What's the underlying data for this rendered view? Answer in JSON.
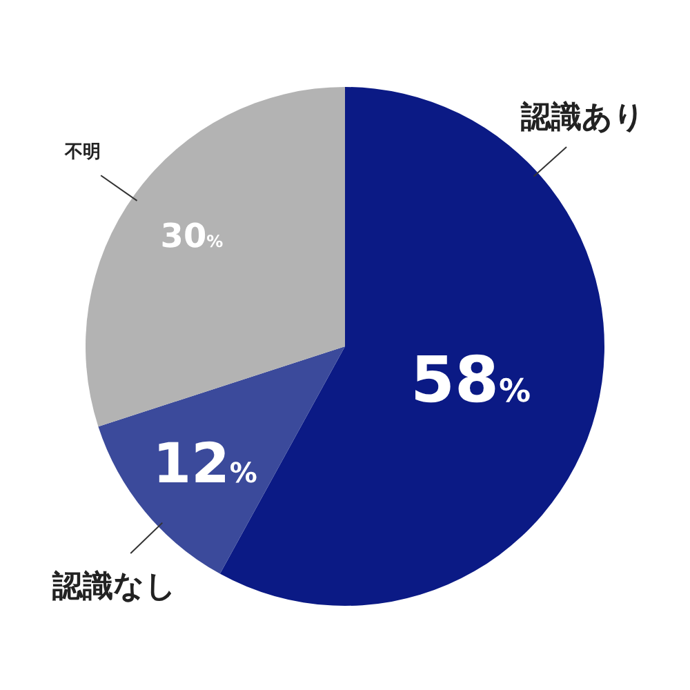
{
  "chart_data": {
    "type": "pie",
    "categories": [
      "認識あり",
      "認識なし",
      "不明"
    ],
    "values": [
      58,
      12,
      30
    ],
    "colors": [
      "#0b1a85",
      "#3b4a9b",
      "#b3b3b3"
    ],
    "value_labels": [
      "58%",
      "12%",
      "30%"
    ]
  }
}
